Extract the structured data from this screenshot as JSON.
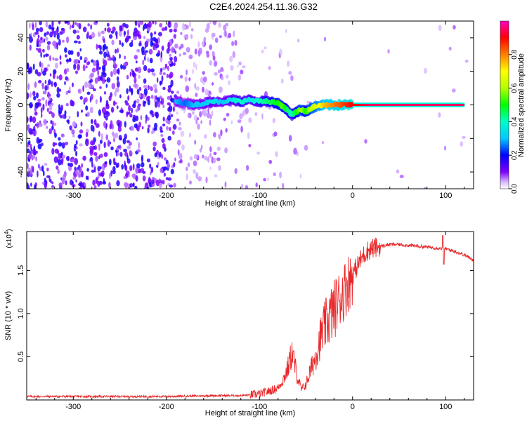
{
  "title": "C2E4.2024.254.11.36.G32",
  "chart_data": [
    {
      "type": "heatmap",
      "xlabel": "Height of straight line (km)",
      "ylabel": "Frequency (Hz)",
      "xlim": [
        -350,
        130
      ],
      "ylim": [
        -50,
        50
      ],
      "xticks": [
        -300,
        -200,
        -100,
        0,
        100
      ],
      "yticks": [
        -40,
        -20,
        0,
        20,
        40
      ],
      "colorbar": {
        "label": "Normalized spectral amplitude",
        "range": [
          0.0,
          1.0
        ],
        "ticks": [
          0.0,
          0.2,
          0.4,
          0.6,
          0.8
        ],
        "tick_labels": [
          "0.0",
          "0.2",
          "0.4",
          "0.6",
          "0.8"
        ],
        "colors": [
          "#ffffff",
          "#8000ff",
          "#0000ff",
          "#00ffff",
          "#00ff00",
          "#ffff00",
          "#ff8000",
          "#ff0000",
          "#ff00ff"
        ]
      },
      "signal_trace": [
        {
          "x": -190,
          "y": 2,
          "amp": 0.3
        },
        {
          "x": -180,
          "y": 1,
          "amp": 0.25
        },
        {
          "x": -170,
          "y": 0,
          "amp": 0.3
        },
        {
          "x": -160,
          "y": 1,
          "amp": 0.3
        },
        {
          "x": -150,
          "y": 2,
          "amp": 0.35
        },
        {
          "x": -140,
          "y": 2,
          "amp": 0.3
        },
        {
          "x": -130,
          "y": 3,
          "amp": 0.35
        },
        {
          "x": -120,
          "y": 2,
          "amp": 0.4
        },
        {
          "x": -110,
          "y": 3,
          "amp": 0.35
        },
        {
          "x": -100,
          "y": 2,
          "amp": 0.4
        },
        {
          "x": -90,
          "y": 2,
          "amp": 0.45
        },
        {
          "x": -80,
          "y": 1,
          "amp": 0.5
        },
        {
          "x": -75,
          "y": -1,
          "amp": 0.55
        },
        {
          "x": -70,
          "y": -3,
          "amp": 0.45
        },
        {
          "x": -65,
          "y": -6,
          "amp": 0.4
        },
        {
          "x": -60,
          "y": -4,
          "amp": 0.5
        },
        {
          "x": -55,
          "y": -3,
          "amp": 0.6
        },
        {
          "x": -50,
          "y": -4,
          "amp": 0.5
        },
        {
          "x": -45,
          "y": -2,
          "amp": 0.6
        },
        {
          "x": -40,
          "y": -1,
          "amp": 0.65
        },
        {
          "x": -30,
          "y": 0,
          "amp": 0.75
        },
        {
          "x": -20,
          "y": 0,
          "amp": 0.8
        },
        {
          "x": -10,
          "y": 0,
          "amp": 0.85
        },
        {
          "x": 0,
          "y": 0,
          "amp": 0.9
        },
        {
          "x": 20,
          "y": 0,
          "amp": 0.95
        },
        {
          "x": 40,
          "y": 0,
          "amp": 0.95
        },
        {
          "x": 60,
          "y": 0,
          "amp": 0.95
        },
        {
          "x": 80,
          "y": 0,
          "amp": 0.95
        },
        {
          "x": 100,
          "y": 0,
          "amp": 0.95
        },
        {
          "x": 120,
          "y": 0,
          "amp": 0.95
        }
      ]
    },
    {
      "type": "line",
      "xlabel": "Height of straight line (km)",
      "ylabel": "SNR (10 * v/v)",
      "yscale_label": "(x10",
      "yscale_exp": "4",
      "yscale_close": ")",
      "xlim": [
        -350,
        130
      ],
      "ylim": [
        0,
        1.95
      ],
      "xticks": [
        -300,
        -200,
        -100,
        0,
        100
      ],
      "yticks": [
        0.5,
        1.0,
        1.5
      ],
      "ytick_labels": [
        "0.5",
        "1.0",
        "1.5"
      ],
      "color": "#e8282a",
      "series": [
        {
          "x": [
            -350,
            -300,
            -250,
            -200,
            -150,
            -120,
            -100,
            -90,
            -80,
            -75,
            -70,
            -65,
            -60,
            -55,
            -50,
            -45,
            -40,
            -35,
            -30,
            -25,
            -20,
            -15,
            -10,
            -5,
            0,
            5,
            10,
            15,
            20,
            30,
            40,
            50,
            60,
            70,
            80,
            90,
            100,
            110,
            120,
            130
          ],
          "y": [
            0.04,
            0.04,
            0.04,
            0.04,
            0.05,
            0.05,
            0.07,
            0.1,
            0.14,
            0.22,
            0.35,
            0.55,
            0.3,
            0.12,
            0.18,
            0.35,
            0.5,
            0.7,
            0.85,
            0.95,
            1.05,
            1.15,
            1.25,
            1.35,
            1.45,
            1.55,
            1.65,
            1.72,
            1.75,
            1.78,
            1.8,
            1.8,
            1.79,
            1.78,
            1.77,
            1.76,
            1.75,
            1.72,
            1.68,
            1.62
          ]
        }
      ]
    }
  ]
}
